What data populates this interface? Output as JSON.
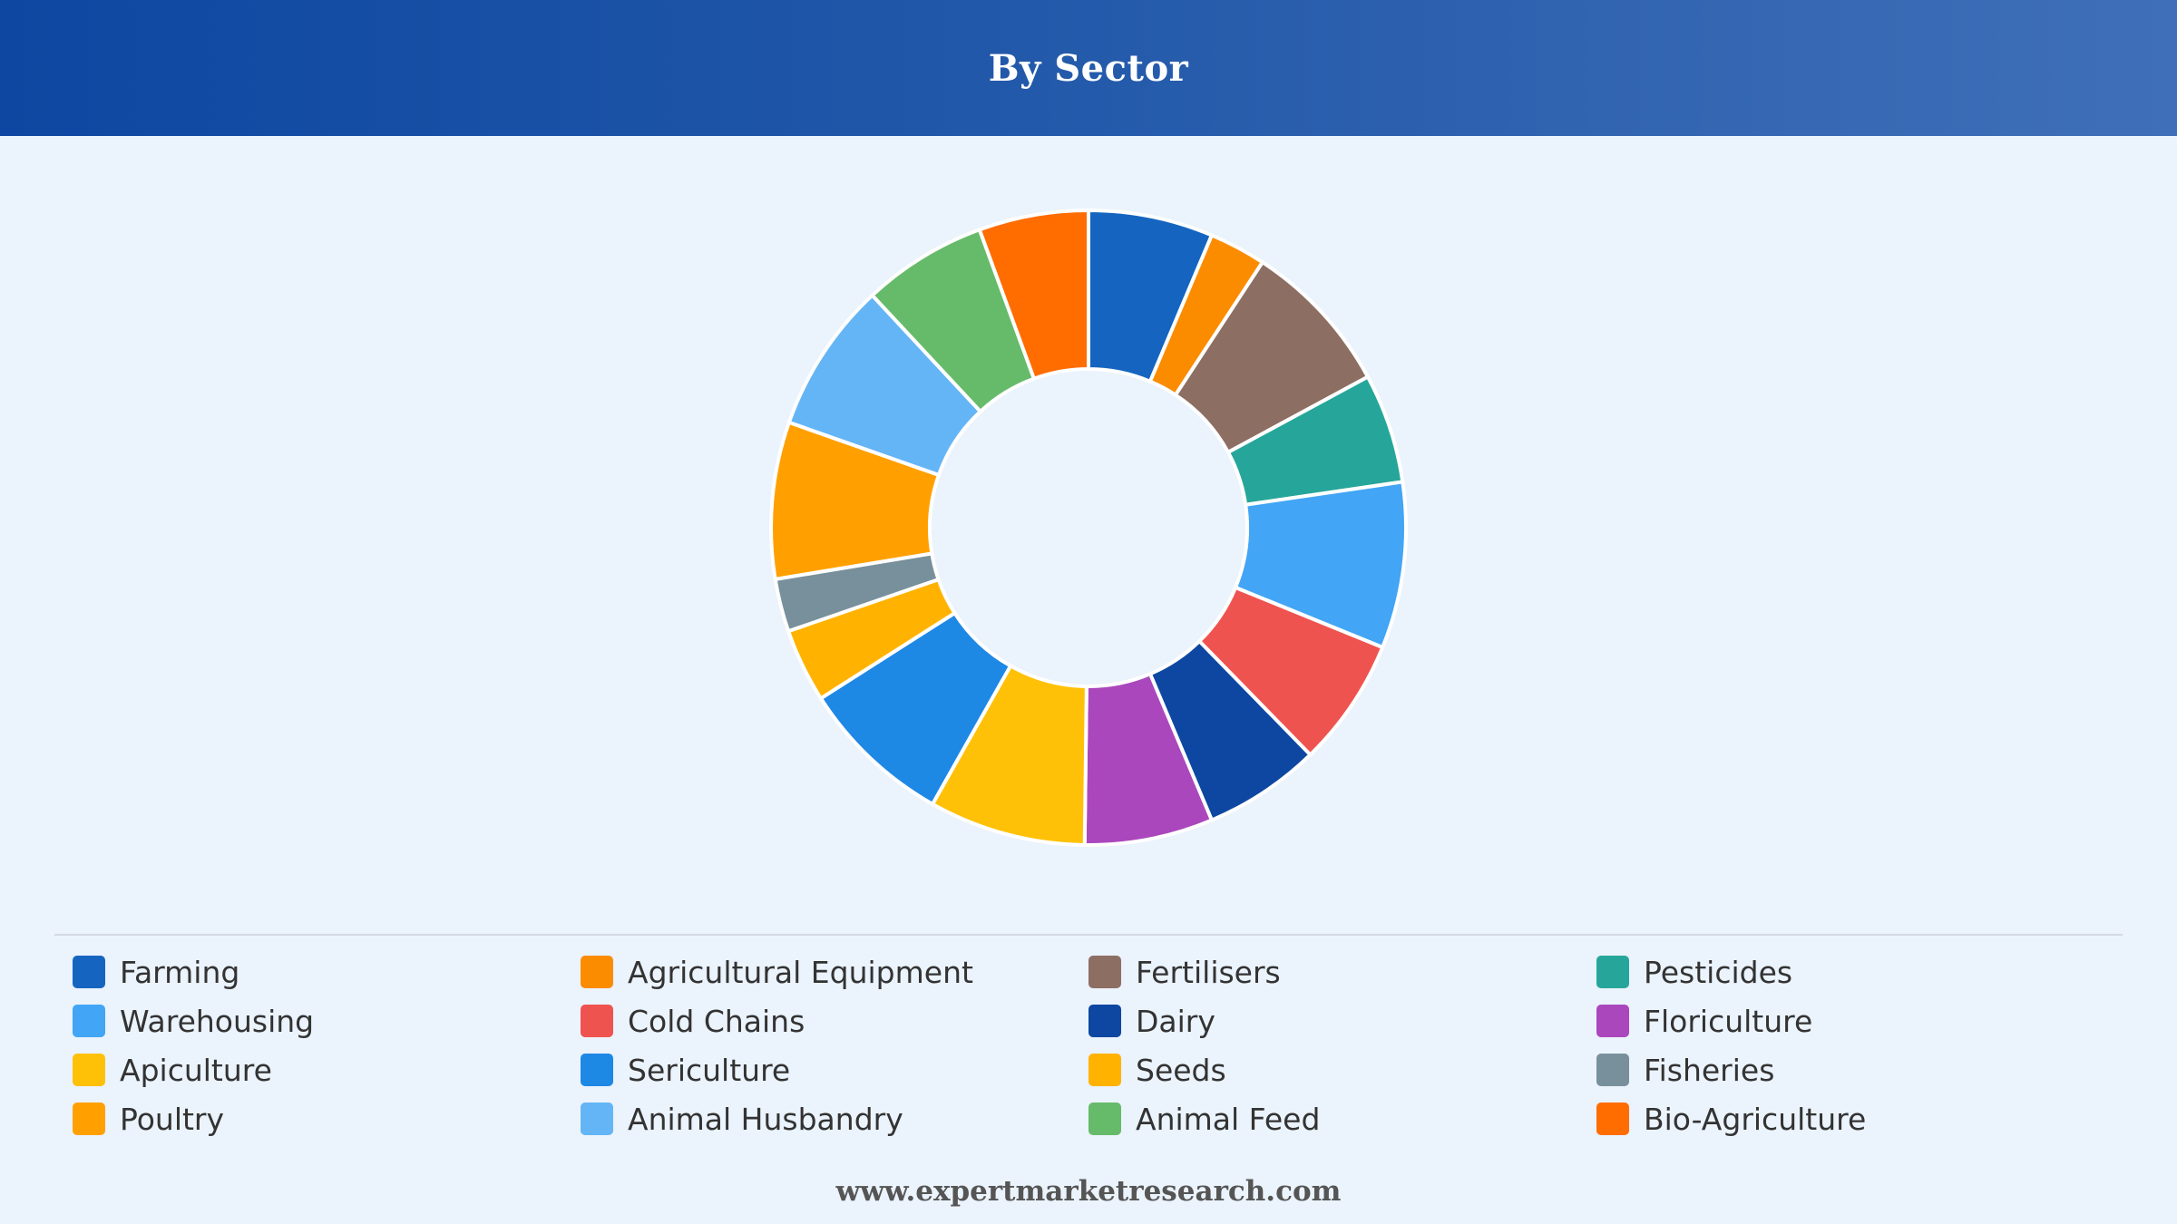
{
  "header": {
    "title": "By Sector"
  },
  "footer": {
    "source": "www.expertmarketresearch.com"
  },
  "chart_data": {
    "type": "pie",
    "donut": true,
    "title": "By Sector",
    "legend_position": "bottom",
    "series": [
      {
        "name": "Farming",
        "value": 6.6,
        "color": "#1565c0"
      },
      {
        "name": "Agricultural Equipment",
        "value": 3.0,
        "color": "#fb8c00"
      },
      {
        "name": "Fertilisers",
        "value": 8.2,
        "color": "#8d6e63"
      },
      {
        "name": "Pesticides",
        "value": 5.8,
        "color": "#26a69a"
      },
      {
        "name": "Warehousing",
        "value": 8.8,
        "color": "#42a5f5"
      },
      {
        "name": "Cold Chains",
        "value": 6.8,
        "color": "#ef5350"
      },
      {
        "name": "Dairy",
        "value": 6.2,
        "color": "#0d47a1"
      },
      {
        "name": "Floriculture",
        "value": 6.8,
        "color": "#ab47bc"
      },
      {
        "name": "Apiculture",
        "value": 8.3,
        "color": "#ffc107"
      },
      {
        "name": "Sericulture",
        "value": 8.1,
        "color": "#1e88e5"
      },
      {
        "name": "Seeds",
        "value": 3.9,
        "color": "#ffb300"
      },
      {
        "name": "Fisheries",
        "value": 2.8,
        "color": "#78909c"
      },
      {
        "name": "Poultry",
        "value": 8.3,
        "color": "#ffa000"
      },
      {
        "name": "Animal Husbandry",
        "value": 8.0,
        "color": "#64b5f6"
      },
      {
        "name": "Animal Feed",
        "value": 6.6,
        "color": "#66bb6a"
      },
      {
        "name": "Bio-Agriculture",
        "value": 5.8,
        "color": "#ff6d00"
      }
    ]
  }
}
